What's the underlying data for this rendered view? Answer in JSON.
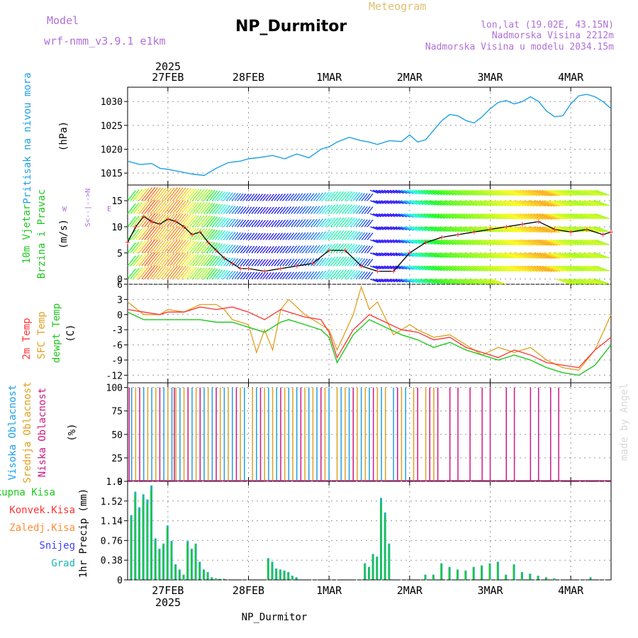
{
  "header": {
    "model_label": "Model",
    "model_name": "wrf-nmm_v3.9.1 e1km",
    "station_title": "NP_Durmitor",
    "meteogram_label": "Meteogram",
    "lonlat": "lon,lat (19.02E, 43.15N)",
    "elevation": "Nadmorska Visina 2212m",
    "model_elevation": "Nadmorska Visina u modelu 2034.15m",
    "footer_station": "NP_Durmitor",
    "credit": "made by Angel"
  },
  "time_axis": {
    "year_label": "2025",
    "dates": [
      "27FEB",
      "28FEB",
      "1MAR",
      "2MAR",
      "3MAR",
      "4MAR"
    ],
    "x_range_days": [
      -0.5,
      5.5
    ]
  },
  "colors": {
    "pressure": "#1ea0e6",
    "t2m": "#ff3232",
    "sfc": "#e0a020",
    "dewpt": "#1ec81e",
    "cloud_high": "#1ea0e6",
    "cloud_mid": "#e0a020",
    "cloud_low": "#cc1a88",
    "precip_total": "#1ec81e",
    "precip_conv": "#ff3232",
    "precip_frz": "#ff8c32",
    "precip_snow": "#4040ff",
    "precip_graupel": "#1eb4b4"
  },
  "panels": {
    "pressure": {
      "label": "Pritisak na nivou mora",
      "unit": "(hPa)"
    },
    "wind": {
      "label1": "10m Vjetar",
      "label2": "Brzina i Pravac",
      "unit": "(m/s)",
      "compass_ns": "S<--|-->N",
      "compass_w": "W",
      "compass_e": "E"
    },
    "temp": {
      "label1": "2m Temp",
      "label2": "SFC Temp",
      "label3": "dewpt Temp",
      "unit": "(C)"
    },
    "cloud": {
      "label1": "Visoka Oblacnost",
      "label2": "Srednja Oblacnost",
      "label3": "Niska Oblacnost",
      "unit": "(%)"
    },
    "precip": {
      "unit": "1hr Precip (mm)",
      "legend": [
        "Ukupna Kisa",
        "Konvek.Kisa",
        "Zaledj.Kisa",
        "Snijeg",
        "Grad"
      ]
    }
  },
  "chart_data": [
    {
      "type": "line",
      "title": "",
      "ylabel": "Pritisak na nivou mora (hPa)",
      "ylim": [
        1012.5,
        1033
      ],
      "yticks": [
        1015,
        1020,
        1025,
        1030
      ],
      "grid": true,
      "series": [
        {
          "name": "Pritisak na nivou mora",
          "x": [
            -0.5,
            -0.35,
            -0.2,
            -0.1,
            0.0,
            0.15,
            0.3,
            0.45,
            0.6,
            0.75,
            0.9,
            1.0,
            1.15,
            1.3,
            1.45,
            1.6,
            1.75,
            1.9,
            2.0,
            2.1,
            2.25,
            2.4,
            2.5,
            2.6,
            2.75,
            2.9,
            3.0,
            3.1,
            3.2,
            3.3,
            3.4,
            3.5,
            3.6,
            3.7,
            3.8,
            3.9,
            4.0,
            4.1,
            4.2,
            4.3,
            4.4,
            4.5,
            4.6,
            4.7,
            4.8,
            4.9,
            5.0,
            5.1,
            5.2,
            5.3,
            5.4,
            5.5
          ],
          "values": [
            1017.5,
            1016.8,
            1017.0,
            1016.0,
            1015.8,
            1015.3,
            1014.8,
            1014.5,
            1016.0,
            1017.2,
            1017.5,
            1018.0,
            1018.3,
            1018.7,
            1018.0,
            1019.0,
            1018.2,
            1020.0,
            1020.5,
            1021.5,
            1022.5,
            1021.8,
            1021.5,
            1021.0,
            1021.8,
            1021.6,
            1023.0,
            1021.5,
            1022.0,
            1024.0,
            1026.0,
            1027.3,
            1027.0,
            1026.0,
            1025.5,
            1026.8,
            1028.5,
            1029.8,
            1030.2,
            1029.5,
            1030.0,
            1031.0,
            1030.0,
            1028.0,
            1026.8,
            1027.0,
            1029.5,
            1031.2,
            1031.5,
            1031.0,
            1030.0,
            1028.5
          ]
        }
      ]
    },
    {
      "type": "line",
      "title": "",
      "ylabel": "10m Vjetar Brzina i Pravac (m/s)",
      "ylim": [
        -1,
        18
      ],
      "yticks": [
        0,
        5,
        10,
        15
      ],
      "grid": true,
      "series": [
        {
          "name": "10m Vjetar",
          "x": [
            -0.5,
            -0.4,
            -0.3,
            -0.2,
            -0.1,
            0.0,
            0.1,
            0.2,
            0.3,
            0.4,
            0.5,
            0.6,
            0.7,
            0.8,
            0.9,
            1.0,
            1.2,
            1.4,
            1.6,
            1.8,
            2.0,
            2.2,
            2.4,
            2.6,
            2.8,
            3.0,
            3.2,
            3.4,
            3.6,
            3.8,
            4.0,
            4.2,
            4.4,
            4.6,
            4.8,
            5.0,
            5.2,
            5.4,
            5.5
          ],
          "values": [
            7.0,
            10.0,
            12.0,
            11.0,
            10.5,
            11.5,
            11.0,
            10.0,
            8.5,
            9.0,
            7.0,
            5.5,
            4.0,
            3.0,
            2.0,
            2.0,
            1.5,
            2.0,
            2.5,
            3.0,
            5.5,
            5.5,
            2.5,
            1.5,
            1.5,
            5.0,
            7.0,
            8.0,
            8.5,
            9.0,
            9.5,
            10.0,
            10.5,
            11.0,
            9.5,
            9.0,
            9.5,
            8.5,
            9.0
          ]
        }
      ]
    },
    {
      "type": "line",
      "title": "",
      "ylabel": "Temp (C)",
      "ylim": [
        -13.5,
        6
      ],
      "yticks": [
        6,
        3,
        0,
        -3,
        -6,
        -9,
        -12
      ],
      "grid": true,
      "series": [
        {
          "name": "2m Temp",
          "x": [
            -0.5,
            -0.3,
            -0.1,
            0.0,
            0.2,
            0.4,
            0.6,
            0.8,
            1.0,
            1.2,
            1.4,
            1.5,
            1.7,
            1.9,
            2.0,
            2.1,
            2.3,
            2.5,
            2.7,
            2.9,
            3.1,
            3.3,
            3.5,
            3.7,
            3.9,
            4.1,
            4.3,
            4.5,
            4.7,
            4.9,
            5.1,
            5.3,
            5.5
          ],
          "values": [
            1.0,
            0.5,
            0.0,
            0.5,
            0.5,
            1.5,
            1.0,
            1.5,
            0.5,
            -1.0,
            1.0,
            0.5,
            -0.5,
            -1.0,
            -3.5,
            -8.5,
            -3.0,
            0.0,
            -1.5,
            -3.0,
            -3.5,
            -5.0,
            -4.5,
            -6.5,
            -7.5,
            -8.5,
            -7.0,
            -8.0,
            -9.5,
            -10.0,
            -10.5,
            -7.0,
            -4.5
          ]
        },
        {
          "name": "SFC Temp",
          "x": [
            -0.5,
            -0.3,
            -0.1,
            0.0,
            0.2,
            0.4,
            0.6,
            0.7,
            0.8,
            1.0,
            1.1,
            1.2,
            1.3,
            1.4,
            1.5,
            1.7,
            1.9,
            2.0,
            2.1,
            2.3,
            2.4,
            2.5,
            2.6,
            2.8,
            3.0,
            3.1,
            3.3,
            3.5,
            3.7,
            3.9,
            4.1,
            4.3,
            4.5,
            4.7,
            4.9,
            5.1,
            5.3,
            5.5
          ],
          "values": [
            2.5,
            0.0,
            0.0,
            1.0,
            0.5,
            2.0,
            2.0,
            1.0,
            -1.0,
            -2.0,
            -7.5,
            -3.0,
            -7.0,
            1.0,
            3.0,
            0.0,
            -2.0,
            -3.0,
            -7.0,
            0.0,
            5.5,
            1.0,
            2.5,
            -4.0,
            -2.0,
            -3.0,
            -4.5,
            -4.0,
            -6.0,
            -8.0,
            -6.5,
            -7.5,
            -6.5,
            -9.0,
            -10.5,
            -11.0,
            -7.0,
            0.0
          ]
        },
        {
          "name": "dewpt Temp",
          "x": [
            -0.5,
            -0.3,
            -0.1,
            0.0,
            0.2,
            0.4,
            0.6,
            0.8,
            1.0,
            1.2,
            1.4,
            1.5,
            1.7,
            1.9,
            2.0,
            2.1,
            2.3,
            2.5,
            2.7,
            2.9,
            3.1,
            3.3,
            3.5,
            3.7,
            3.9,
            4.1,
            4.3,
            4.5,
            4.7,
            4.9,
            5.1,
            5.3,
            5.5
          ],
          "values": [
            0.5,
            -1.0,
            -1.0,
            -1.0,
            -1.0,
            -1.0,
            -1.5,
            -1.5,
            -2.5,
            -3.5,
            -1.5,
            -1.0,
            -2.0,
            -3.0,
            -4.5,
            -9.5,
            -4.0,
            -1.0,
            -2.5,
            -4.0,
            -5.0,
            -6.5,
            -5.5,
            -7.0,
            -8.0,
            -9.0,
            -8.0,
            -9.0,
            -10.5,
            -11.5,
            -12.0,
            -10.0,
            -6.0
          ]
        }
      ]
    },
    {
      "type": "bar",
      "title": "",
      "ylabel": "Oblacnost (%)",
      "ylim": [
        0,
        105
      ],
      "yticks": [
        0,
        25,
        50,
        75,
        100
      ],
      "grid": true,
      "series": [
        {
          "name": "Visoka Oblacnost",
          "x": [
            -0.45,
            -0.3,
            -0.2,
            -0.05,
            0.05,
            0.15,
            0.3,
            0.45,
            0.55,
            0.7,
            0.8,
            0.95,
            1.1,
            1.25,
            1.35,
            1.5,
            1.6,
            1.75,
            1.85,
            2.0,
            2.15,
            2.25,
            2.4,
            2.5,
            2.65,
            2.8,
            2.95
          ],
          "values": [
            100,
            100,
            100,
            100,
            100,
            100,
            100,
            100,
            100,
            100,
            100,
            100,
            100,
            100,
            100,
            100,
            100,
            100,
            100,
            100,
            100,
            100,
            100,
            100,
            100,
            100,
            100
          ]
        },
        {
          "name": "Srednja Oblacnost",
          "x": [
            -0.4,
            -0.25,
            -0.15,
            0.0,
            0.1,
            0.2,
            0.35,
            0.5,
            0.65,
            0.75,
            0.9,
            1.05,
            1.2,
            1.3,
            1.45,
            1.55,
            1.7,
            1.8,
            1.95,
            2.1,
            2.2,
            2.35,
            2.45,
            2.6,
            2.7,
            2.9,
            3.05,
            3.2,
            3.3
          ],
          "values": [
            100,
            100,
            100,
            100,
            100,
            100,
            100,
            100,
            100,
            100,
            100,
            100,
            100,
            100,
            100,
            100,
            100,
            100,
            100,
            100,
            100,
            100,
            100,
            100,
            100,
            100,
            100,
            100,
            100
          ]
        },
        {
          "name": "Niska Oblacnost",
          "x": [
            -0.48,
            -0.35,
            -0.1,
            0.08,
            0.25,
            0.4,
            0.6,
            0.85,
            1.15,
            1.4,
            1.65,
            1.9,
            2.3,
            2.55,
            2.85,
            3.1,
            3.25,
            3.35,
            3.5,
            3.6,
            3.75,
            3.9,
            4.0,
            4.2,
            4.3,
            4.5,
            4.6,
            4.75,
            4.85
          ],
          "values": [
            100,
            100,
            100,
            100,
            100,
            100,
            100,
            100,
            100,
            100,
            100,
            100,
            100,
            100,
            100,
            100,
            100,
            100,
            100,
            100,
            100,
            100,
            100,
            100,
            100,
            100,
            100,
            100,
            100
          ]
        }
      ]
    },
    {
      "type": "bar",
      "title": "",
      "ylabel": "1hr Precip (mm)",
      "ylim": [
        0,
        1.9
      ],
      "yticks": [
        0,
        0.38,
        0.76,
        1.14,
        1.52,
        1.9
      ],
      "grid": true,
      "series": [
        {
          "name": "Ukupna Kisa",
          "x": [
            -0.45,
            -0.4,
            -0.35,
            -0.3,
            -0.25,
            -0.2,
            -0.15,
            -0.1,
            -0.05,
            0.0,
            0.05,
            0.1,
            0.15,
            0.2,
            0.25,
            0.3,
            0.35,
            0.4,
            0.45,
            0.5,
            0.55,
            0.6,
            0.65,
            0.7,
            1.25,
            1.3,
            1.35,
            1.4,
            1.45,
            1.5,
            1.55,
            1.6,
            2.45,
            2.5,
            2.55,
            2.6,
            2.65,
            2.7,
            2.75,
            3.2,
            3.3,
            3.4,
            3.5,
            3.6,
            3.7,
            3.8,
            3.9,
            4.0,
            4.1,
            4.2,
            4.3,
            4.4,
            4.5,
            4.6,
            4.7,
            4.8,
            5.25
          ],
          "values": [
            1.25,
            1.7,
            1.4,
            1.65,
            1.55,
            1.82,
            0.8,
            0.6,
            0.7,
            1.05,
            0.75,
            0.3,
            0.2,
            0.1,
            0.75,
            0.6,
            0.7,
            0.35,
            0.2,
            0.15,
            0.05,
            0.03,
            0.02,
            0.02,
            0.42,
            0.35,
            0.22,
            0.2,
            0.18,
            0.15,
            0.08,
            0.05,
            0.32,
            0.25,
            0.5,
            0.45,
            1.58,
            1.3,
            0.7,
            0.1,
            0.1,
            0.32,
            0.25,
            0.2,
            0.18,
            0.25,
            0.28,
            0.32,
            0.35,
            0.1,
            0.3,
            0.15,
            0.12,
            0.08,
            0.05,
            0.03,
            0.05
          ]
        }
      ]
    }
  ]
}
